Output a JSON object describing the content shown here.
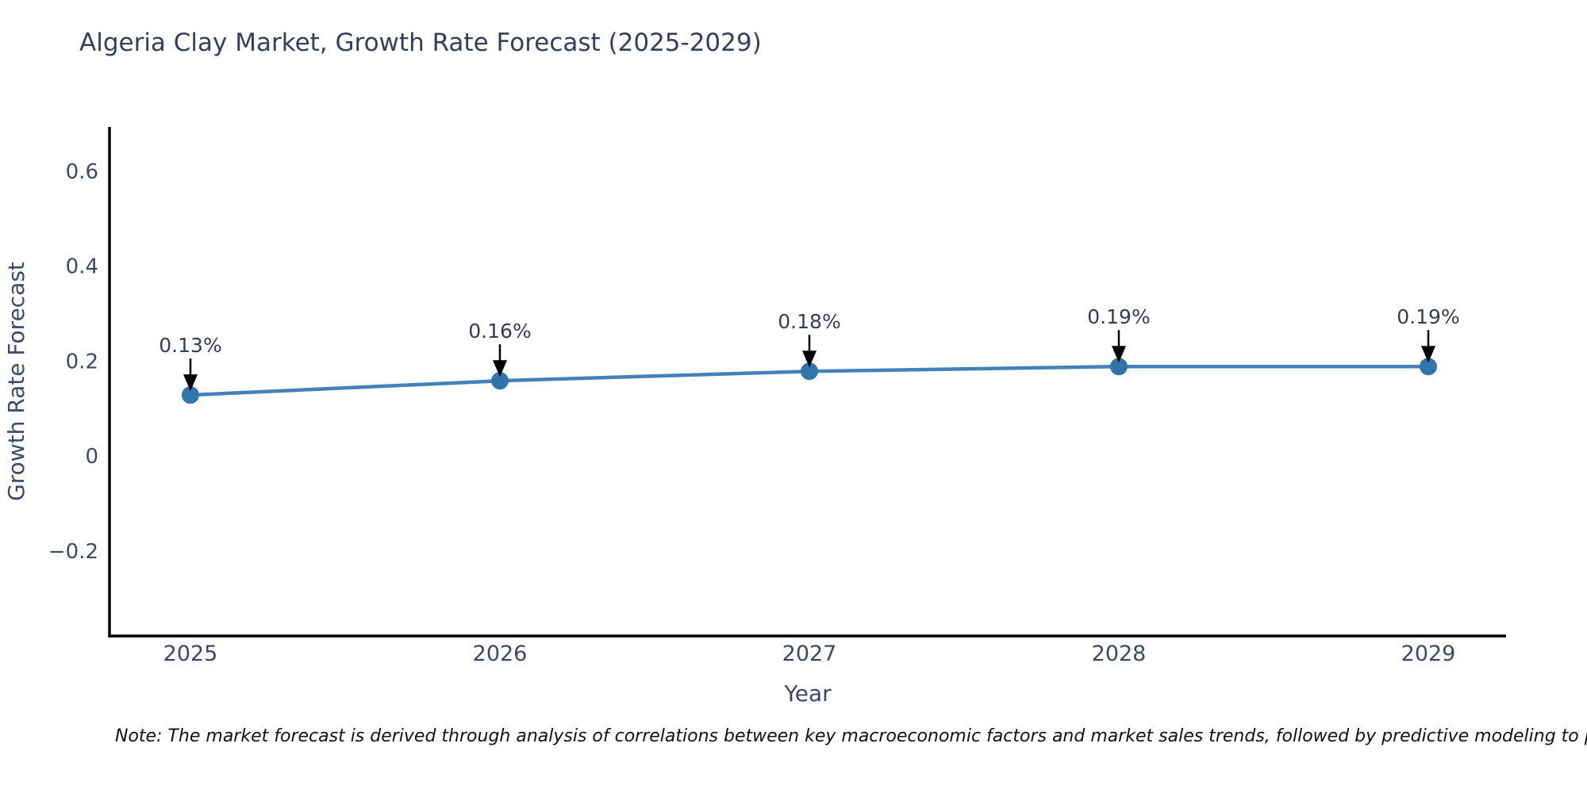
{
  "title": "Algeria Clay Market, Growth Rate Forecast (2025-2029)",
  "note": "Note: The market forecast is derived through analysis of correlations between key macroeconomic factors and market sales trends, followed by predictive modeling to project future sales",
  "chart_data": {
    "type": "line",
    "title": "Algeria Clay Market, Growth Rate Forecast (2025-2029)",
    "x": [
      2025,
      2026,
      2027,
      2028,
      2029
    ],
    "categories": [
      "2025",
      "2026",
      "2027",
      "2028",
      "2029"
    ],
    "series": [
      {
        "name": "Growth Rate Forecast",
        "values": [
          0.13,
          0.16,
          0.18,
          0.19,
          0.19
        ],
        "point_labels": [
          "0.13%",
          "0.16%",
          "0.18%",
          "0.19%",
          "0.19%"
        ]
      }
    ],
    "xlabel": "Year",
    "ylabel": "Growth Rate Forecast",
    "yticks": [
      0.6,
      0.4,
      0.2,
      0,
      -0.2
    ],
    "ytick_labels": [
      "0.6",
      "0.4",
      "0.2",
      "0",
      "−0.2"
    ],
    "ylim": [
      -0.38,
      0.7
    ],
    "grid": false,
    "legend_position": "none",
    "annotations_arrow": true,
    "colors": {
      "line": "#4282b8",
      "marker": "#3173ab",
      "arrow": "#000000",
      "tick_text": "#3b4a5f",
      "axis_title_text": "#3a4a63",
      "annotation_text": "#333f4f",
      "title_text": "#33405c",
      "spine": "#000000",
      "background": "#ffffff",
      "note_text": "#111111"
    }
  }
}
